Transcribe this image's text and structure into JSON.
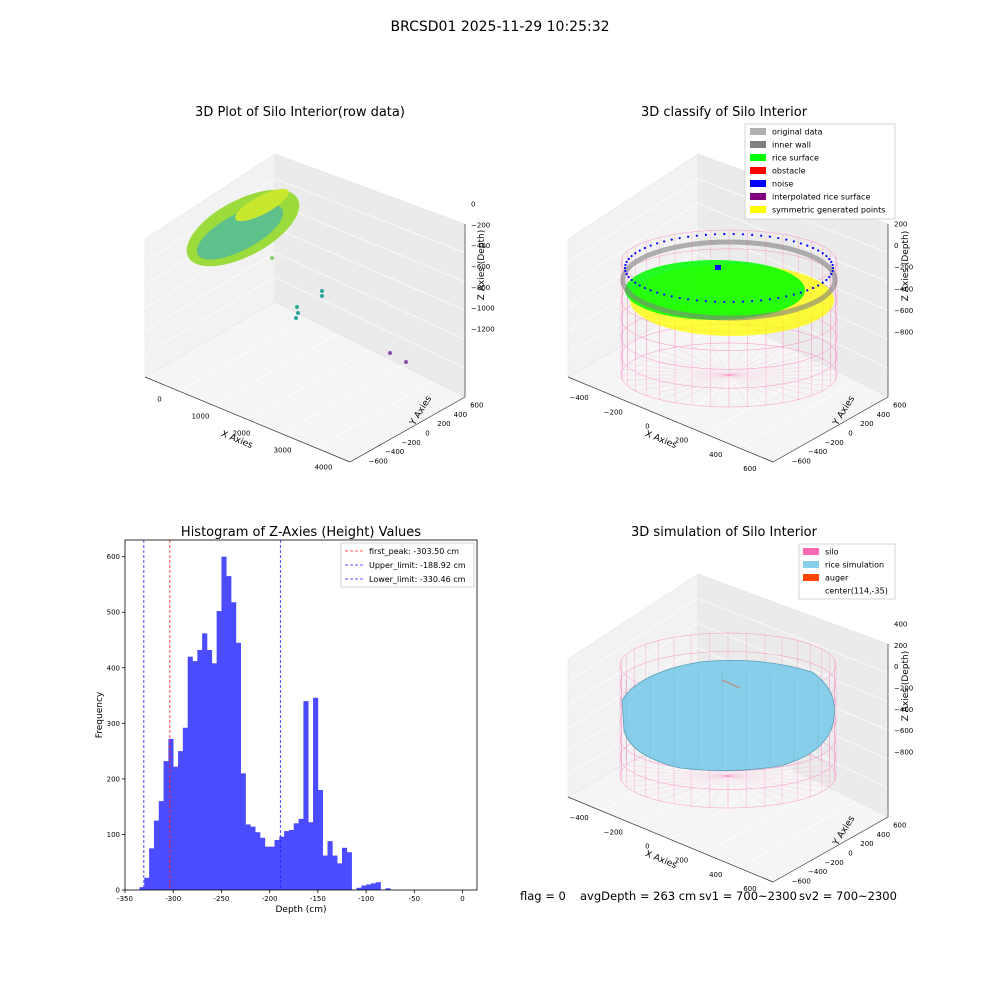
{
  "figure_title": "BRCSD01 2025-11-29 10:25:32",
  "status": {
    "flag": "flag = 0",
    "avg_depth": "avgDepth = 263 cm",
    "sv1": "sv1 = 700~2300",
    "sv2": "sv2 = 700~2300"
  },
  "colors": {
    "bar": "#4b4bff",
    "first_peak": "#ff2020",
    "limit": "#2020ff",
    "silo": "#ff69b4",
    "rice_sim": "#87ceeb",
    "auger": "#ff4500",
    "rice_surface": "#00ff00",
    "noise": "#0000ff",
    "symmetric": "#ffff00",
    "inner_wall": "#808080",
    "original": "#b0b0b0",
    "obstacle": "#ff0000",
    "interp": "#800080"
  },
  "plot1": {
    "title": "3D Plot of Silo Interior(row data)",
    "xlabel": "X Axies",
    "ylabel": "Y Axies",
    "zlabel": "Z Axies (Depth)",
    "xticks": [
      "0",
      "1000",
      "2000",
      "3000",
      "4000"
    ],
    "yticks": [
      "−600",
      "−400",
      "−200",
      "0",
      "200",
      "400",
      "600"
    ],
    "zticks": [
      "0",
      "−200",
      "−400",
      "−600",
      "−800",
      "−1000",
      "−1200"
    ]
  },
  "plot2": {
    "title": "3D classify of Silo Interior",
    "xlabel": "X Axies",
    "ylabel": "Y Axies",
    "zlabel": "Z Axies (Depth)",
    "xticks": [
      "−400",
      "−200",
      "0",
      "200",
      "400",
      "600"
    ],
    "yticks": [
      "−600",
      "−400",
      "−200",
      "0",
      "200",
      "400",
      "600"
    ],
    "zticks": [
      "200",
      "0",
      "−200",
      "−400",
      "−600",
      "−800"
    ],
    "legend": [
      "original data",
      "inner wall",
      "rice surface",
      "obstacle",
      "noise",
      "interpolated rice surface",
      "symmetric generated points"
    ]
  },
  "plot4": {
    "title": "3D simulation of Silo Interior",
    "xlabel": "X Axies",
    "ylabel": "Y Axies",
    "zlabel": "Z Axies (Depth)",
    "xticks": [
      "−400",
      "−200",
      "0",
      "200",
      "400",
      "600"
    ],
    "yticks": [
      "−600",
      "−400",
      "−200",
      "0",
      "200",
      "400",
      "600"
    ],
    "zticks": [
      "400",
      "200",
      "0",
      "−200",
      "−400",
      "−600",
      "−800"
    ],
    "legend": [
      "silo",
      "rice simulation",
      "auger",
      "center(114,-35)"
    ]
  },
  "chart_data": {
    "type": "bar",
    "title": "Histogram of Z-Axies (Height) Values",
    "xlabel": "Depth (cm)",
    "ylabel": "Frequency",
    "xlim": [
      -350,
      15
    ],
    "ylim": [
      0,
      630
    ],
    "xticks": [
      -350,
      -300,
      -250,
      -200,
      -150,
      -100,
      -50,
      0
    ],
    "yticks": [
      0,
      100,
      200,
      300,
      400,
      500,
      600
    ],
    "bin_width": 5,
    "bin_start": -335,
    "values": [
      5,
      22,
      75,
      125,
      160,
      232,
      272,
      222,
      250,
      292,
      420,
      412,
      432,
      462,
      432,
      408,
      502,
      600,
      565,
      518,
      445,
      210,
      118,
      114,
      104,
      94,
      78,
      78,
      90,
      96,
      106,
      108,
      120,
      128,
      340,
      122,
      346,
      180,
      62,
      88,
      62,
      48,
      76,
      68,
      0,
      4,
      8,
      10,
      12,
      14,
      0,
      3
    ],
    "vlines": [
      {
        "label": "first_peak: -303.50 cm",
        "value": -303.5,
        "color": "#ff2020"
      },
      {
        "label": "Upper_limit: -188.92 cm",
        "value": -188.92,
        "color": "#2020ff"
      },
      {
        "label": "Lower_limit: -330.46 cm",
        "value": -330.46,
        "color": "#2020ff"
      }
    ],
    "legend_position": "top-right",
    "grid": false
  }
}
